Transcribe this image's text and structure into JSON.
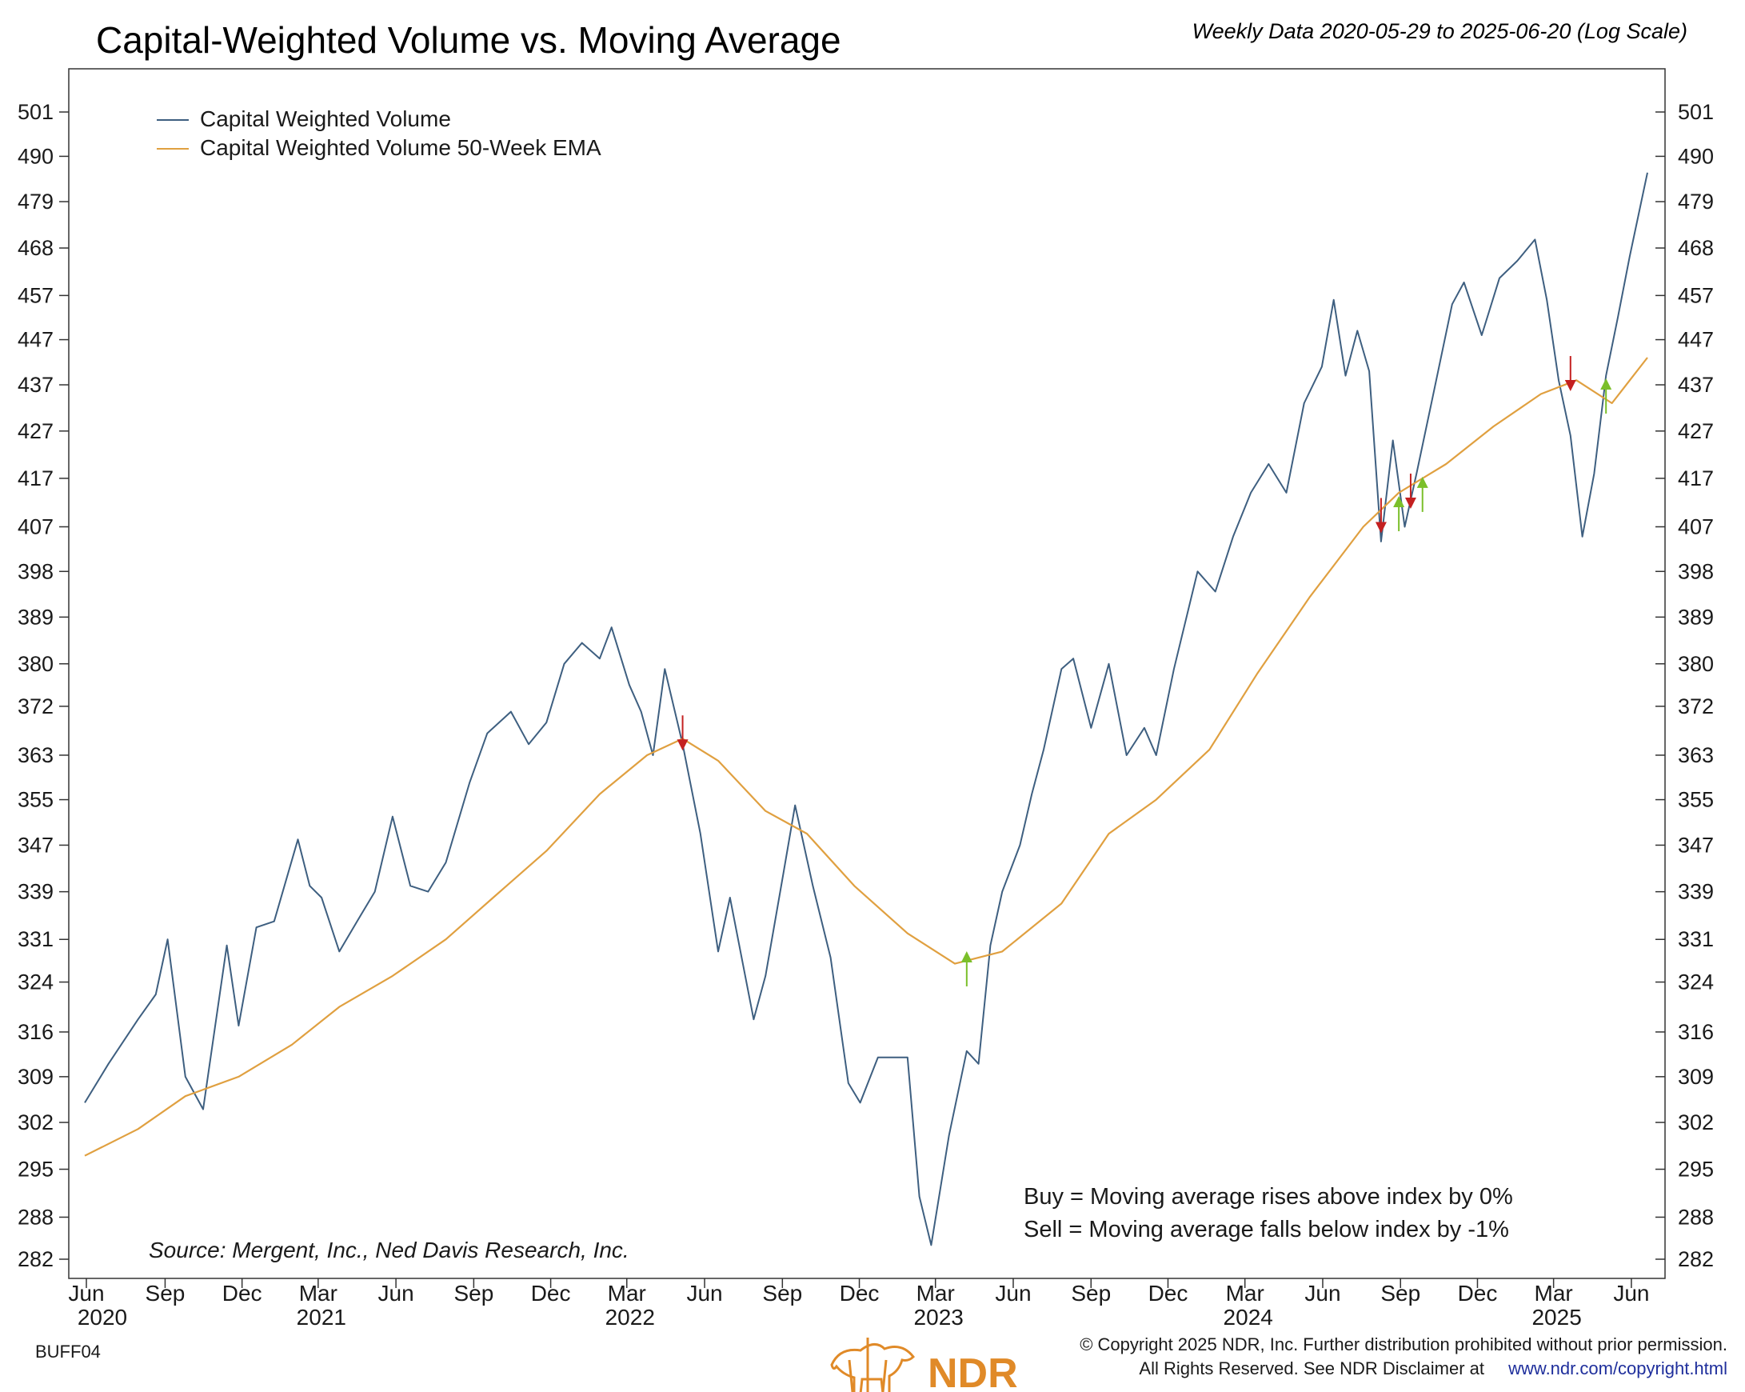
{
  "header": {
    "title": "Capital-Weighted Volume vs. Moving Average",
    "subtitle": "Weekly Data 2020-05-29 to 2025-06-20 (Log Scale)"
  },
  "legend": {
    "items": [
      {
        "label": "Capital Weighted Volume",
        "color": "#3e5f80"
      },
      {
        "label": "Capital Weighted Volume 50-Week EMA",
        "color": "#e0a040"
      }
    ]
  },
  "notes": {
    "buy": "Buy = Moving average rises above index by 0%",
    "sell": "Sell = Moving average falls below index by -1%"
  },
  "source": "Source:   Mergent, Inc., Ned Davis Research, Inc.",
  "footer": {
    "code": "BUFF04",
    "copyright": "© Copyright 2025 NDR, Inc. Further distribution prohibited without prior permission.",
    "disclaimer": "All Rights Reserved. See NDR Disclaimer at",
    "link": "www.ndr.com/copyright.html",
    "logo": "NDR"
  },
  "colors": {
    "volume": "#3e5f80",
    "ema": "#e0a040",
    "buy_arrow": "#7bbf2a",
    "sell_arrow": "#c42020",
    "logo": "#e08a28"
  },
  "chart_data": {
    "type": "line",
    "scale": "log",
    "ylim": [
      282,
      501
    ],
    "y_ticks": [
      501,
      490,
      479,
      468,
      457,
      447,
      437,
      427,
      417,
      407,
      398,
      389,
      380,
      372,
      363,
      355,
      347,
      339,
      331,
      324,
      316,
      309,
      302,
      295,
      288,
      282
    ],
    "x_month_labels": [
      "Jun",
      "Sep",
      "Dec",
      "Mar",
      "Jun",
      "Sep",
      "Dec",
      "Mar",
      "Jun",
      "Sep",
      "Dec",
      "Mar",
      "Jun",
      "Sep",
      "Dec",
      "Mar",
      "Jun",
      "Sep",
      "Dec",
      "Mar",
      "Jun"
    ],
    "x_year_labels": [
      "2020",
      "2021",
      "2022",
      "2023",
      "2024",
      "2025"
    ],
    "x_range": [
      "2020-05-29",
      "2025-06-20"
    ],
    "series": [
      {
        "name": "Capital Weighted Volume",
        "points": [
          [
            "2020-05-29",
            305
          ],
          [
            "2020-06-26",
            311
          ],
          [
            "2020-07-31",
            318
          ],
          [
            "2020-08-21",
            322
          ],
          [
            "2020-09-04",
            331
          ],
          [
            "2020-09-25",
            309
          ],
          [
            "2020-10-16",
            304
          ],
          [
            "2020-11-13",
            330
          ],
          [
            "2020-11-27",
            317
          ],
          [
            "2020-12-18",
            333
          ],
          [
            "2021-01-08",
            334
          ],
          [
            "2021-02-05",
            348
          ],
          [
            "2021-02-19",
            340
          ],
          [
            "2021-03-05",
            338
          ],
          [
            "2021-03-26",
            329
          ],
          [
            "2021-04-16",
            334
          ],
          [
            "2021-05-07",
            339
          ],
          [
            "2021-05-28",
            352
          ],
          [
            "2021-06-18",
            340
          ],
          [
            "2021-07-09",
            339
          ],
          [
            "2021-07-30",
            344
          ],
          [
            "2021-08-27",
            358
          ],
          [
            "2021-09-17",
            367
          ],
          [
            "2021-10-15",
            371
          ],
          [
            "2021-11-05",
            365
          ],
          [
            "2021-11-26",
            369
          ],
          [
            "2021-12-17",
            380
          ],
          [
            "2022-01-07",
            384
          ],
          [
            "2022-01-28",
            381
          ],
          [
            "2022-02-11",
            387
          ],
          [
            "2022-03-04",
            376
          ],
          [
            "2022-03-18",
            371
          ],
          [
            "2022-04-01",
            363
          ],
          [
            "2022-04-15",
            379
          ],
          [
            "2022-05-06",
            365
          ],
          [
            "2022-05-27",
            349
          ],
          [
            "2022-06-17",
            329
          ],
          [
            "2022-07-01",
            338
          ],
          [
            "2022-07-29",
            318
          ],
          [
            "2022-08-12",
            325
          ],
          [
            "2022-09-02",
            342
          ],
          [
            "2022-09-16",
            354
          ],
          [
            "2022-10-07",
            340
          ],
          [
            "2022-10-28",
            328
          ],
          [
            "2022-11-18",
            308
          ],
          [
            "2022-12-02",
            305
          ],
          [
            "2022-12-23",
            312
          ],
          [
            "2023-01-06",
            312
          ],
          [
            "2023-01-27",
            312
          ],
          [
            "2023-02-10",
            291
          ],
          [
            "2023-02-24",
            284
          ],
          [
            "2023-03-17",
            300
          ],
          [
            "2023-04-07",
            313
          ],
          [
            "2023-04-21",
            311
          ],
          [
            "2023-05-05",
            330
          ],
          [
            "2023-05-19",
            339
          ],
          [
            "2023-06-09",
            347
          ],
          [
            "2023-06-23",
            356
          ],
          [
            "2023-07-07",
            364
          ],
          [
            "2023-07-28",
            379
          ],
          [
            "2023-08-11",
            381
          ],
          [
            "2023-09-01",
            368
          ],
          [
            "2023-09-22",
            380
          ],
          [
            "2023-10-13",
            363
          ],
          [
            "2023-11-03",
            368
          ],
          [
            "2023-11-17",
            363
          ],
          [
            "2023-12-08",
            379
          ],
          [
            "2024-01-05",
            398
          ],
          [
            "2024-01-26",
            394
          ],
          [
            "2024-02-16",
            405
          ],
          [
            "2024-03-08",
            414
          ],
          [
            "2024-03-29",
            420
          ],
          [
            "2024-04-19",
            414
          ],
          [
            "2024-05-10",
            433
          ],
          [
            "2024-05-31",
            441
          ],
          [
            "2024-06-14",
            456
          ],
          [
            "2024-06-28",
            439
          ],
          [
            "2024-07-12",
            449
          ],
          [
            "2024-07-26",
            440
          ],
          [
            "2024-08-09",
            404
          ],
          [
            "2024-08-23",
            425
          ],
          [
            "2024-09-06",
            407
          ],
          [
            "2024-09-20",
            418
          ],
          [
            "2024-10-11",
            436
          ],
          [
            "2024-11-01",
            455
          ],
          [
            "2024-11-15",
            460
          ],
          [
            "2024-12-06",
            448
          ],
          [
            "2024-12-27",
            461
          ],
          [
            "2025-01-17",
            465
          ],
          [
            "2025-02-07",
            470
          ],
          [
            "2025-02-21",
            456
          ],
          [
            "2025-03-07",
            438
          ],
          [
            "2025-03-21",
            426
          ],
          [
            "2025-04-04",
            405
          ],
          [
            "2025-04-18",
            418
          ],
          [
            "2025-05-02",
            439
          ],
          [
            "2025-05-16",
            452
          ],
          [
            "2025-05-30",
            466
          ],
          [
            "2025-06-20",
            486
          ]
        ]
      },
      {
        "name": "Capital Weighted Volume 50-Week EMA",
        "points": [
          [
            "2020-05-29",
            297
          ],
          [
            "2020-07-31",
            301
          ],
          [
            "2020-09-25",
            306
          ],
          [
            "2020-11-27",
            309
          ],
          [
            "2021-01-29",
            314
          ],
          [
            "2021-03-26",
            320
          ],
          [
            "2021-05-28",
            325
          ],
          [
            "2021-07-30",
            331
          ],
          [
            "2021-09-24",
            338
          ],
          [
            "2021-11-26",
            346
          ],
          [
            "2022-01-28",
            356
          ],
          [
            "2022-03-25",
            363
          ],
          [
            "2022-05-06",
            366
          ],
          [
            "2022-06-17",
            362
          ],
          [
            "2022-08-12",
            353
          ],
          [
            "2022-09-30",
            349
          ],
          [
            "2022-11-25",
            340
          ],
          [
            "2023-01-27",
            332
          ],
          [
            "2023-03-24",
            327
          ],
          [
            "2023-05-19",
            329
          ],
          [
            "2023-07-28",
            337
          ],
          [
            "2023-09-22",
            349
          ],
          [
            "2023-11-17",
            355
          ],
          [
            "2024-01-19",
            364
          ],
          [
            "2024-03-15",
            378
          ],
          [
            "2024-05-17",
            393
          ],
          [
            "2024-07-19",
            407
          ],
          [
            "2024-08-30",
            414
          ],
          [
            "2024-10-25",
            420
          ],
          [
            "2024-12-20",
            428
          ],
          [
            "2025-02-14",
            435
          ],
          [
            "2025-03-28",
            438
          ],
          [
            "2025-05-09",
            433
          ],
          [
            "2025-06-20",
            443
          ]
        ]
      }
    ],
    "signals": [
      {
        "type": "sell",
        "date": "2022-05-06",
        "value": 365
      },
      {
        "type": "buy",
        "date": "2023-04-07",
        "value": 328
      },
      {
        "type": "sell",
        "date": "2024-08-09",
        "value": 407
      },
      {
        "type": "buy",
        "date": "2024-08-30",
        "value": 412
      },
      {
        "type": "sell",
        "date": "2024-09-13",
        "value": 412
      },
      {
        "type": "buy",
        "date": "2024-09-27",
        "value": 416
      },
      {
        "type": "sell",
        "date": "2025-03-21",
        "value": 437
      },
      {
        "type": "buy",
        "date": "2025-05-02",
        "value": 437
      }
    ]
  }
}
